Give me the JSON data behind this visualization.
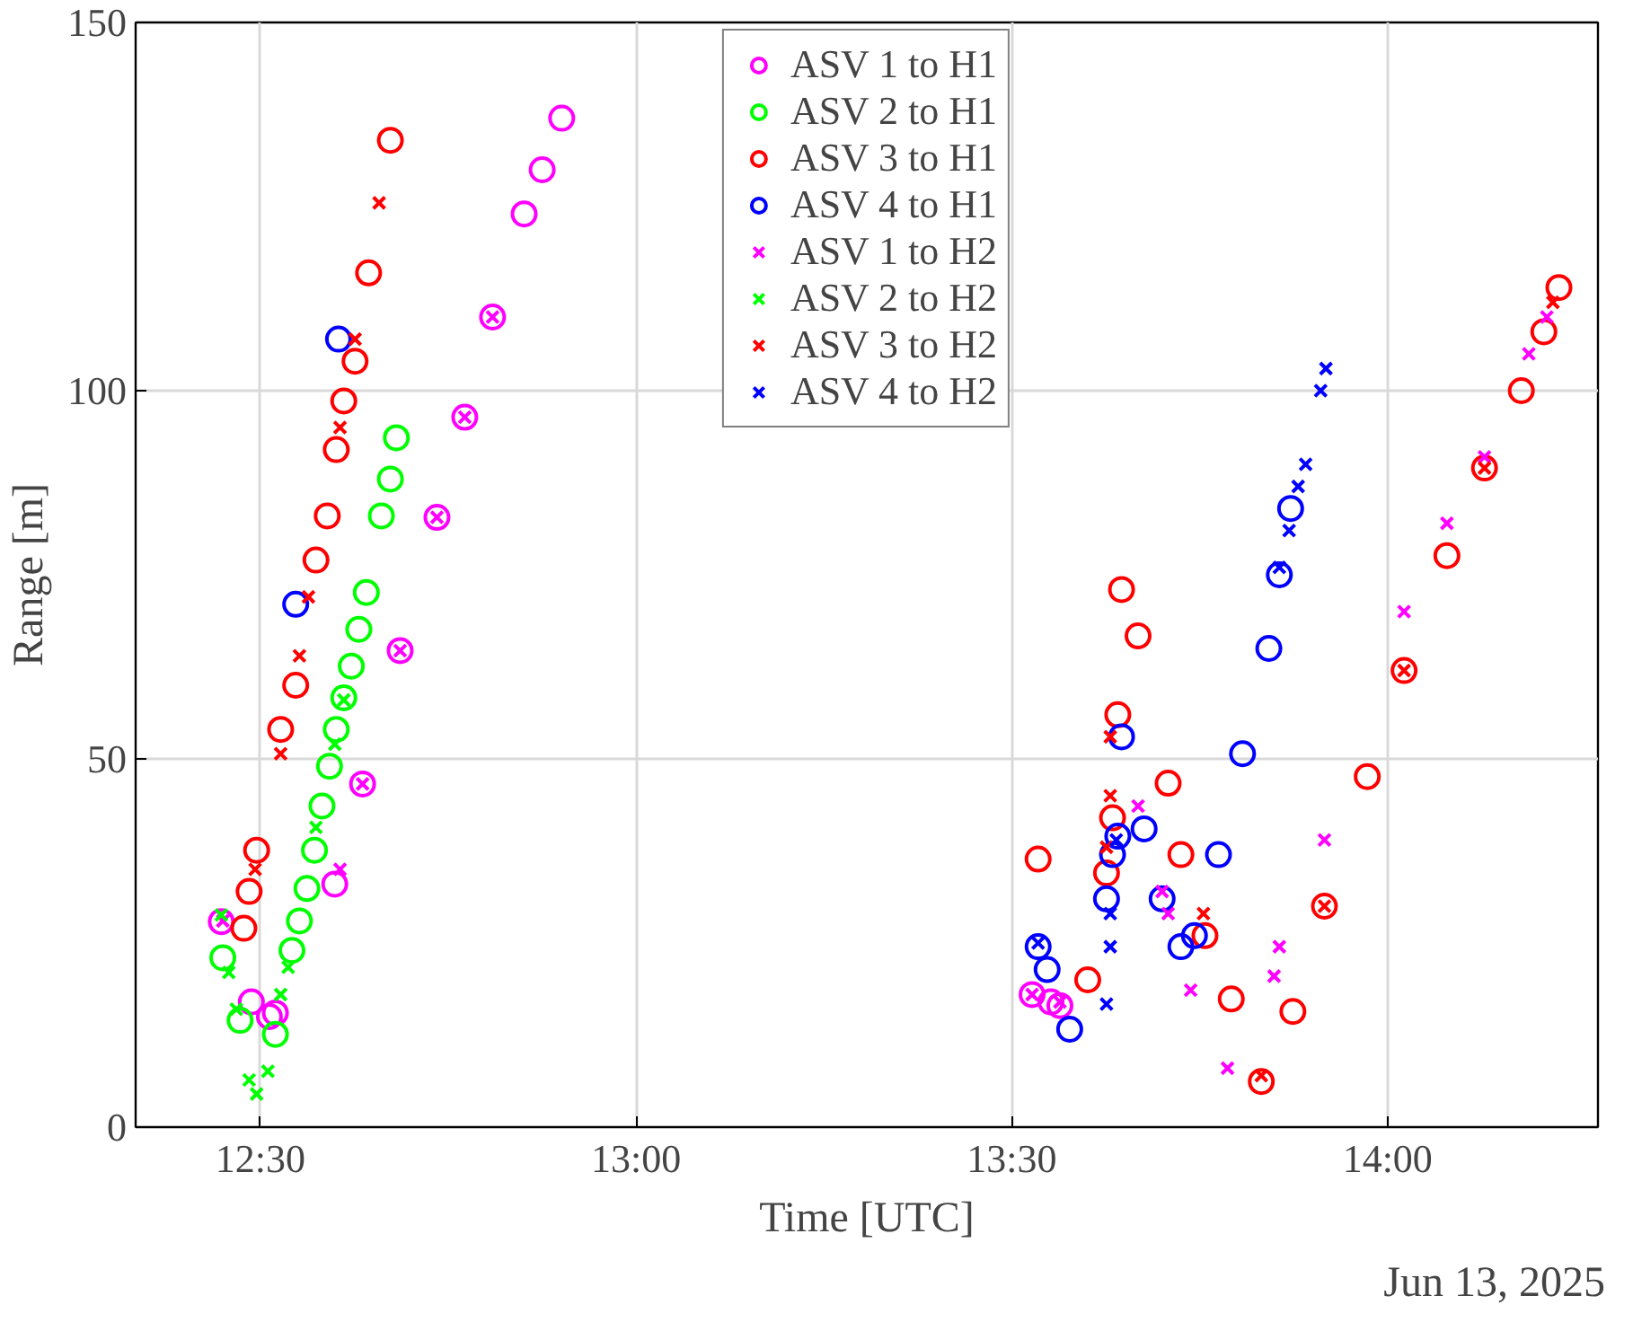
{
  "chart_data": {
    "type": "scatter",
    "xlabel": "Time [UTC]",
    "ylabel": "Range [m]",
    "annotations": [
      "Jun 13, 2025"
    ],
    "xlim": [
      12.334,
      14.28
    ],
    "ylim": [
      0,
      150
    ],
    "xticks": [
      {
        "value": 12.5,
        "label": "12:30"
      },
      {
        "value": 13.0,
        "label": "13:00"
      },
      {
        "value": 13.5,
        "label": "13:30"
      },
      {
        "value": 14.0,
        "label": "14:00"
      }
    ],
    "yticks": [
      0,
      50,
      100,
      150
    ],
    "grid": true,
    "legend": "top",
    "series": [
      {
        "name": "ASV 1 to H1",
        "color": "#ff00ff",
        "marker": "circle",
        "x": [
          12.448,
          12.488,
          12.512,
          12.52,
          12.599,
          12.636,
          12.686,
          12.735,
          12.772,
          12.809,
          12.851,
          12.875,
          12.901,
          13.527,
          13.552,
          13.564
        ],
        "values": [
          27.9,
          17,
          15,
          15.5,
          33,
          46.6,
          64.7,
          82.8,
          96.4,
          110,
          124,
          130,
          137,
          18,
          17,
          16.5
        ]
      },
      {
        "name": "ASV 2 to H1",
        "color": "#00ff00",
        "marker": "circle",
        "x": [
          12.45,
          12.473,
          12.52,
          12.542,
          12.552,
          12.562,
          12.572,
          12.582,
          12.592,
          12.601,
          12.611,
          12.621,
          12.631,
          12.641,
          12.661,
          12.673,
          12.681
        ],
        "values": [
          23,
          14.5,
          12.6,
          24,
          28,
          32.4,
          37.6,
          43.6,
          49,
          54,
          58.3,
          62.6,
          67.6,
          72.6,
          83,
          88,
          93.6
        ]
      },
      {
        "name": "ASV 3 to H1",
        "color": "#ff0000",
        "marker": "circle",
        "x": [
          12.478,
          12.485,
          12.495,
          12.527,
          12.547,
          12.574,
          12.589,
          12.601,
          12.611,
          12.626,
          12.644,
          12.673,
          13.535,
          13.601,
          13.626,
          13.634,
          13.641,
          13.646,
          13.668,
          13.708,
          13.725,
          13.757,
          13.792,
          13.832,
          13.874,
          13.916,
          13.973,
          14.022,
          14.079,
          14.129,
          14.178,
          14.208,
          14.228
        ],
        "values": [
          27,
          32,
          37.6,
          54,
          60,
          77,
          83,
          92,
          98.6,
          104,
          116,
          134,
          36.4,
          20,
          34.5,
          42,
          56,
          73,
          66.7,
          46.7,
          37,
          26,
          17.4,
          6.2,
          15.7,
          30,
          47.6,
          62,
          77.6,
          89.5,
          100,
          108,
          114
        ]
      },
      {
        "name": "ASV 4 to H1",
        "color": "#0000ff",
        "marker": "circle",
        "x": [
          12.547,
          12.604,
          13.535,
          13.547,
          13.577,
          13.626,
          13.634,
          13.641,
          13.646,
          13.676,
          13.7,
          13.725,
          13.743,
          13.775,
          13.807,
          13.842,
          13.856,
          13.871
        ],
        "values": [
          71,
          107,
          24.5,
          21.4,
          13.3,
          31,
          37,
          39.5,
          53,
          40.5,
          31,
          24.5,
          26,
          37,
          50.7,
          65,
          75,
          84
        ]
      },
      {
        "name": "ASV 1 to H2",
        "color": "#ff00ff",
        "marker": "cross",
        "x": [
          12.45,
          12.606,
          12.636,
          12.686,
          12.735,
          12.772,
          12.809,
          13.527,
          13.564,
          13.668,
          13.7,
          13.708,
          13.738,
          13.787,
          13.849,
          13.856,
          13.916,
          14.022,
          14.079,
          14.129,
          14.188,
          14.212
        ],
        "values": [
          28,
          35,
          46.6,
          64.7,
          82.8,
          96.4,
          110,
          18,
          17,
          43.6,
          32,
          29,
          18.6,
          8,
          20.5,
          24.5,
          39,
          70,
          82,
          91,
          105,
          110
        ]
      },
      {
        "name": "ASV 2 to H2",
        "color": "#00ff00",
        "marker": "cross",
        "x": [
          12.448,
          12.458,
          12.468,
          12.485,
          12.495,
          12.51,
          12.527,
          12.537,
          12.574,
          12.599,
          12.611
        ],
        "values": [
          28.8,
          21,
          16,
          6.4,
          4.5,
          7.6,
          18,
          21.7,
          40.7,
          52,
          58
        ]
      },
      {
        "name": "ASV 3 to H2",
        "color": "#ff0000",
        "marker": "cross",
        "x": [
          12.493,
          12.527,
          12.552,
          12.564,
          12.606,
          12.626,
          12.658,
          13.626,
          13.631,
          13.631,
          13.755,
          13.832,
          13.916,
          14.022,
          14.129,
          14.22
        ],
        "values": [
          35,
          50.7,
          64,
          72,
          95,
          107,
          125.5,
          38,
          45,
          53,
          29,
          7,
          30,
          62,
          89.5,
          112
        ]
      },
      {
        "name": "ASV 4 to H2",
        "color": "#0000ff",
        "marker": "cross",
        "x": [
          13.535,
          13.626,
          13.631,
          13.631,
          13.639,
          13.856,
          13.869,
          13.881,
          13.891,
          13.911,
          13.918
        ],
        "values": [
          25,
          16.7,
          24.5,
          29,
          39,
          76,
          81,
          87,
          90,
          100,
          103
        ]
      }
    ]
  }
}
